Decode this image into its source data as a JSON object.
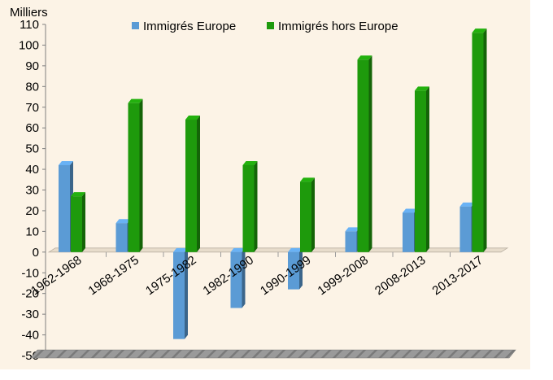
{
  "chart_data": {
    "type": "bar",
    "title": "",
    "ylabel": "Milliers",
    "xlabel": "",
    "ylim": [
      -50,
      110
    ],
    "yticks": [
      110,
      100,
      90,
      80,
      70,
      60,
      50,
      40,
      30,
      20,
      10,
      0,
      -10,
      -20,
      -30,
      -40,
      -50
    ],
    "categories": [
      "1962-1968",
      "1968-1975",
      "1975-1982",
      "1982-1990",
      "1990-1999",
      "1999-2008",
      "2008-2013",
      "2013-2017"
    ],
    "series": [
      {
        "name": "Immigrés Europe",
        "color": "#5B9BD5",
        "values": [
          42,
          14,
          -42,
          -27,
          -18,
          10,
          19,
          22
        ]
      },
      {
        "name": "Immigrés hors Europe",
        "color": "#1E9A0C",
        "values": [
          27,
          72,
          64,
          42,
          34,
          93,
          78,
          106
        ]
      }
    ],
    "legend": "top",
    "grid": false,
    "background": "#FCF3E6"
  }
}
